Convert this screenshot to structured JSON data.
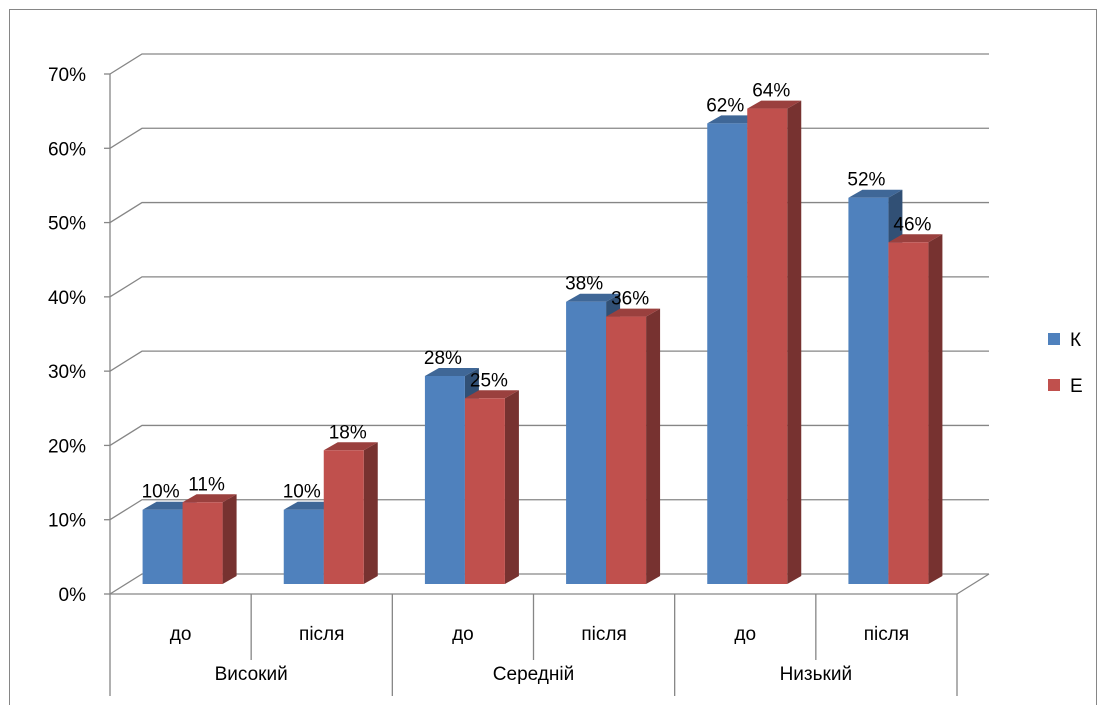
{
  "chart_data": {
    "type": "bar",
    "title": "",
    "xlabel": "",
    "ylabel": "",
    "ylim": [
      0,
      0.7
    ],
    "yticks": [
      "0%",
      "10%",
      "20%",
      "30%",
      "40%",
      "50%",
      "60%",
      "70%"
    ],
    "groups": [
      {
        "label": "Високий",
        "categories": [
          "до",
          "після"
        ]
      },
      {
        "label": "Середній",
        "categories": [
          "до",
          "після"
        ]
      },
      {
        "label": "Низький",
        "categories": [
          "до",
          "після"
        ]
      }
    ],
    "series": [
      {
        "name": "К",
        "color": "#4F81BD",
        "values": [
          0.1,
          0.1,
          0.28,
          0.38,
          0.62,
          0.52
        ],
        "labels": [
          "10%",
          "10%",
          "28%",
          "38%",
          "62%",
          "52%"
        ]
      },
      {
        "name": "Е",
        "color": "#C0504D",
        "values": [
          0.11,
          0.18,
          0.25,
          0.36,
          0.64,
          0.46
        ],
        "labels": [
          "11%",
          "18%",
          "25%",
          "36%",
          "64%",
          "46%"
        ]
      }
    ],
    "grid": true,
    "legend_position": "right",
    "style": "3d-clustered-column"
  }
}
